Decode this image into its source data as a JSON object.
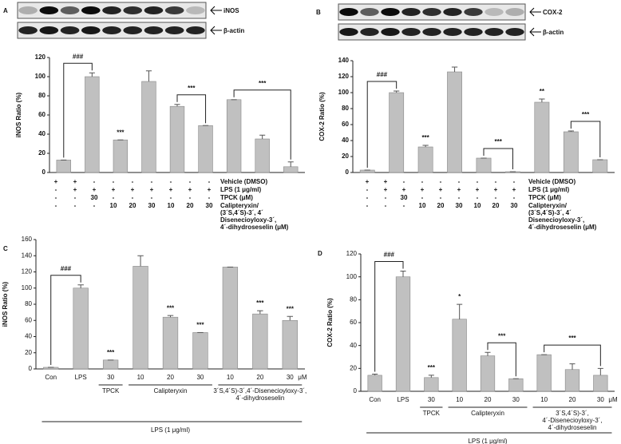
{
  "chart_data": [
    {
      "type": "bar",
      "panel_label": "A",
      "blots": [
        "iNOS",
        "β-actin"
      ],
      "y_label": "iNOS Ratio (%)",
      "values": [
        13,
        100,
        34,
        95,
        69,
        49,
        76,
        35,
        6
      ],
      "errors": [
        0,
        4,
        0,
        11,
        2,
        0,
        0,
        4,
        5
      ],
      "color": "#c0c0c0",
      "ylim": [
        0,
        120
      ],
      "yticks": [
        0,
        20,
        40,
        60,
        80,
        100,
        120
      ],
      "annotations": [
        {
          "text": "###",
          "bars": [
            0,
            1
          ]
        },
        {
          "text": "***",
          "bars": [
            2
          ]
        },
        {
          "text": "***",
          "bars": [
            4,
            5
          ]
        },
        {
          "text": "***",
          "bars": [
            6,
            8
          ]
        }
      ],
      "treatment_rows": [
        {
          "label_lines": [
            "Vehicle (DMSO)"
          ],
          "cells": [
            "+",
            "+",
            "-",
            "-",
            "-",
            "-",
            "-",
            "-",
            "-"
          ]
        },
        {
          "label_lines": [
            "LPS (1 μg/ml)"
          ],
          "cells": [
            "-",
            "+",
            "+",
            "+",
            "+",
            "+",
            "+",
            "+",
            "+"
          ]
        },
        {
          "label_lines": [
            "TPCK (μM)"
          ],
          "cells": [
            "-",
            "-",
            30,
            "-",
            "-",
            "-",
            "-",
            "-",
            "-"
          ]
        },
        {
          "label_lines": [
            "Calipteryxin/",
            "(3´S,4´S)-3´, 4´",
            "Disenecioyloxy-3´,",
            "4´-dihydroseselin (μM)"
          ],
          "cells": [
            "-",
            "-",
            "-",
            10,
            20,
            30,
            10,
            20,
            30
          ]
        }
      ]
    },
    {
      "type": "bar",
      "panel_label": "B",
      "blots": [
        "COX-2",
        "β-actin"
      ],
      "y_label": "COX-2 Ratio (%)",
      "values": [
        3,
        100,
        32,
        126,
        18,
        1,
        88,
        51,
        16
      ],
      "errors": [
        0,
        2,
        2,
        6,
        0,
        0,
        4,
        1,
        0
      ],
      "color": "#c0c0c0",
      "ylim": [
        0,
        140
      ],
      "yticks": [
        0,
        20,
        40,
        60,
        80,
        100,
        120,
        140
      ],
      "annotations": [
        {
          "text": "###",
          "bars": [
            0,
            1
          ]
        },
        {
          "text": "***",
          "bars": [
            2
          ]
        },
        {
          "text": "***",
          "bars": [
            4,
            5
          ]
        },
        {
          "text": "**",
          "bars": [
            6
          ]
        },
        {
          "text": "***",
          "bars": [
            7,
            8
          ]
        }
      ],
      "treatment_rows": [
        {
          "label_lines": [
            "Vehicle (DMSO)"
          ],
          "cells": [
            "+",
            "+",
            "-",
            "-",
            "-",
            "-",
            "-",
            "-",
            "-"
          ]
        },
        {
          "label_lines": [
            "LPS (1 μg/ml)"
          ],
          "cells": [
            "-",
            "+",
            "+",
            "+",
            "+",
            "+",
            "+",
            "+",
            "+"
          ]
        },
        {
          "label_lines": [
            "TPCK (μM)"
          ],
          "cells": [
            "-",
            "-",
            30,
            "-",
            "-",
            "-",
            "-",
            "-",
            "-"
          ]
        },
        {
          "label_lines": [
            "Calipteryxin/",
            "(3´S,4´S)-3´, 4´",
            "Disenecioyloxy-3´,",
            "4´-dihydroseselin (μM)"
          ],
          "cells": [
            "-",
            "-",
            "-",
            10,
            20,
            30,
            10,
            20,
            30
          ]
        }
      ]
    },
    {
      "type": "bar",
      "panel_label": "C",
      "y_label": "iNOS Ratio (%)",
      "categories": [
        "Con",
        "LPS",
        "30",
        "10",
        "20",
        "30",
        "10",
        "20",
        "30"
      ],
      "unit": "μM",
      "values": [
        2,
        100,
        11,
        127,
        64,
        45,
        126,
        68,
        60
      ],
      "errors": [
        0,
        4,
        0,
        13,
        2,
        0,
        0,
        4,
        5
      ],
      "color": "#c0c0c0",
      "ylim": [
        0,
        160
      ],
      "yticks": [
        0,
        20,
        40,
        60,
        80,
        100,
        120,
        140,
        160
      ],
      "annotations": [
        {
          "text": "###",
          "bars": [
            0,
            1
          ]
        },
        {
          "text": "***",
          "bars": [
            2
          ]
        },
        {
          "text": "***",
          "bars": [
            4
          ]
        },
        {
          "text": "***",
          "bars": [
            5
          ]
        },
        {
          "text": "***",
          "bars": [
            7
          ]
        },
        {
          "text": "***",
          "bars": [
            8
          ]
        }
      ],
      "groups": [
        {
          "label_lines": [
            "TPCK"
          ],
          "bars": [
            2,
            2
          ]
        },
        {
          "label_lines": [
            "Calipteryxin"
          ],
          "bars": [
            3,
            5
          ]
        },
        {
          "label_lines": [
            "3´S,4´S)-3´,4´-Disenecioyloxy-3´,",
            "4´-dihydroseselin"
          ],
          "bars": [
            6,
            8
          ]
        }
      ],
      "footer": "LPS (1 μg/ml)"
    },
    {
      "type": "bar",
      "panel_label": "D",
      "y_label": "COX-2 Ratio (%)",
      "categories": [
        "Con",
        "LPS",
        "30",
        "10",
        "20",
        "30",
        "10",
        "20",
        "30"
      ],
      "unit": "μM",
      "values": [
        14,
        100,
        12,
        63,
        31,
        11,
        32,
        19,
        14
      ],
      "errors": [
        1,
        5,
        2,
        13,
        3,
        0,
        0,
        5,
        6
      ],
      "color": "#c0c0c0",
      "ylim": [
        0,
        120
      ],
      "yticks": [
        0,
        20,
        40,
        60,
        80,
        100,
        120
      ],
      "annotations": [
        {
          "text": "###",
          "bars": [
            0,
            1
          ]
        },
        {
          "text": "***",
          "bars": [
            2
          ]
        },
        {
          "text": "*",
          "bars": [
            3
          ]
        },
        {
          "text": "***",
          "bars": [
            4,
            5
          ]
        },
        {
          "text": "***",
          "bars": [
            6,
            8
          ]
        }
      ],
      "groups": [
        {
          "label_lines": [
            "TPCK"
          ],
          "bars": [
            2,
            2
          ]
        },
        {
          "label_lines": [
            "Calipteryxin"
          ],
          "bars": [
            3,
            5
          ]
        },
        {
          "label_lines": [
            "3´S,4´S)-3´,",
            "4´-Disenecioyloxy-3´,",
            "4´-dihydroseselin"
          ],
          "bars": [
            6,
            8
          ]
        }
      ],
      "footer": "LPS (1 μg/ml)"
    }
  ]
}
